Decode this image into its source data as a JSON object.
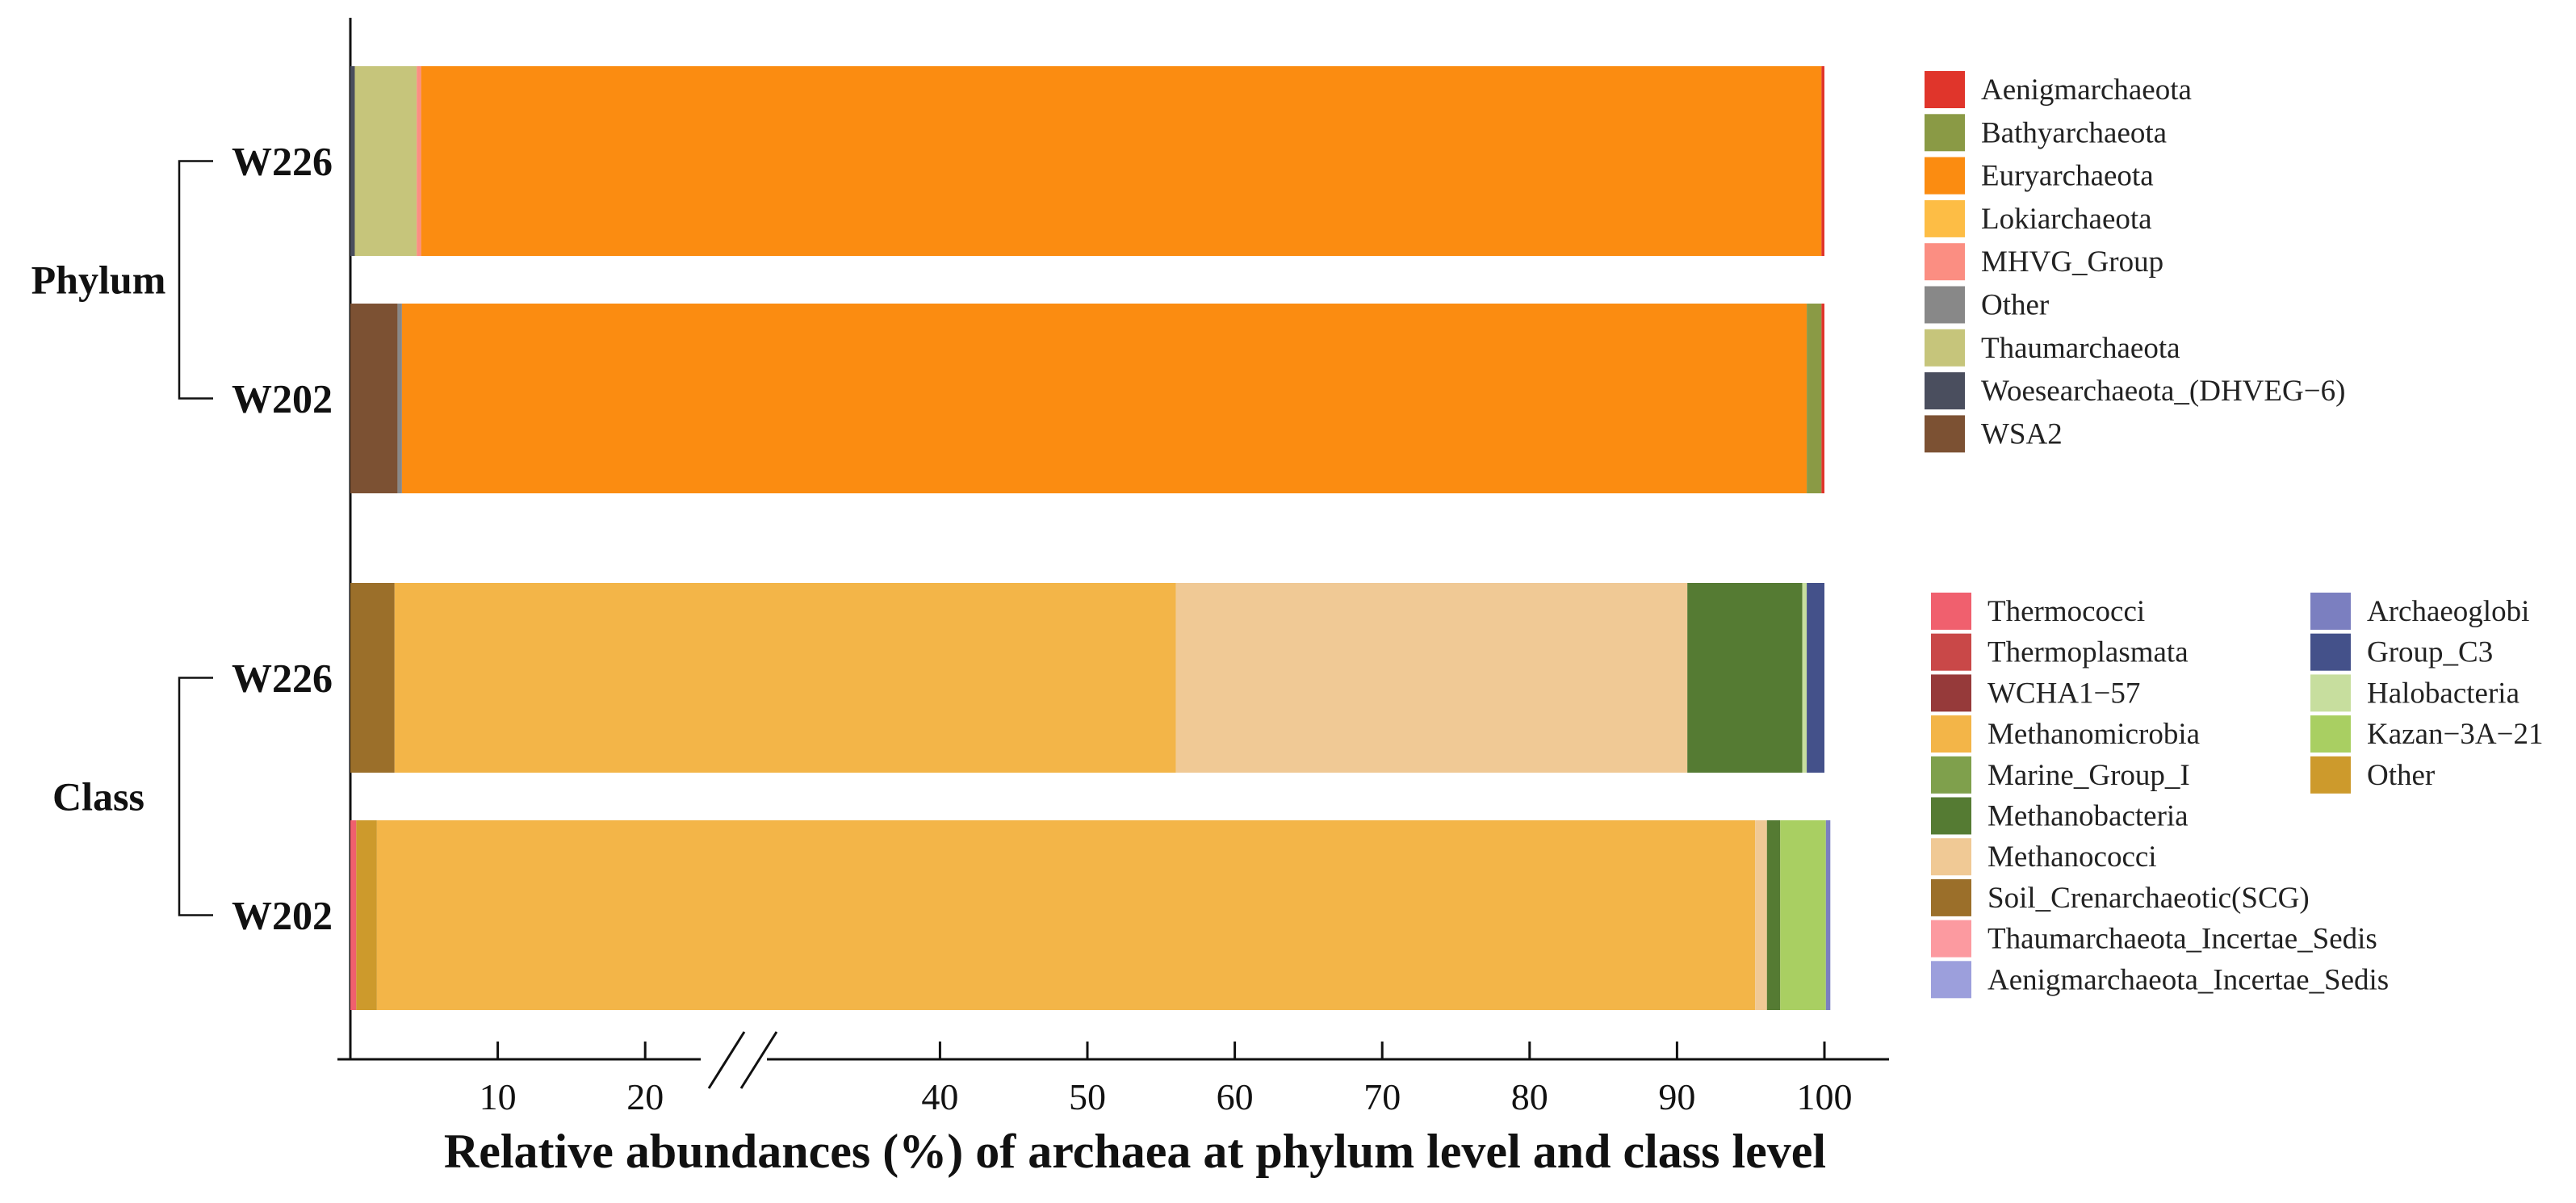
{
  "chart_data": {
    "type": "bar",
    "orientation": "horizontal",
    "stacked": true,
    "xlabel": "Relative abundances (%) of  archaea at phylum level and class level",
    "xlim": [
      0,
      100
    ],
    "axis_break": "between 20 and 30",
    "xticks": [
      10,
      20,
      40,
      50,
      60,
      70,
      80,
      90,
      100
    ],
    "grid": false,
    "groups": [
      {
        "name": "Phylum",
        "legend_position": "right-top",
        "legend": [
          "Aenigmarchaeota",
          "Bathyarchaeota",
          "Euryarchaeota",
          "Lokiarchaeota",
          "MHVG_Group",
          "Other",
          "Thaumarchaeota",
          "Woesearchaeota_(DHVEG−6)",
          "WSA2"
        ],
        "colors": {
          "Aenigmarchaeota": "#e0352b",
          "Bathyarchaeota": "#8a9a45",
          "Euryarchaeota": "#fb8c11",
          "Lokiarchaeota": "#fdbd45",
          "MHVG_Group": "#fb8e82",
          "Other": "#888888",
          "Thaumarchaeota": "#c6c57b",
          "Woesearchaeota_(DHVEG−6)": "#4a4e5e",
          "WSA2": "#7c5133"
        },
        "samples": [
          {
            "name": "W226",
            "segments": [
              {
                "taxon": "Woesearchaeota_(DHVEG−6)",
                "value": 0.3
              },
              {
                "taxon": "Thaumarchaeota",
                "value": 4.2
              },
              {
                "taxon": "MHVG_Group",
                "value": 0.3
              },
              {
                "taxon": "Euryarchaeota",
                "value": 95.0
              },
              {
                "taxon": "Aenigmarchaeota",
                "value": 0.2
              }
            ]
          },
          {
            "name": "W202",
            "segments": [
              {
                "taxon": "WSA2",
                "value": 3.2
              },
              {
                "taxon": "Other",
                "value": 0.3
              },
              {
                "taxon": "Euryarchaeota",
                "value": 95.3
              },
              {
                "taxon": "Bathyarchaeota",
                "value": 1.0
              },
              {
                "taxon": "Aenigmarchaeota",
                "value": 0.2
              }
            ]
          }
        ]
      },
      {
        "name": "Class",
        "legend_position": "right-bottom",
        "legend": [
          "Thermococci",
          "Thermoplasmata",
          "WCHA1−57",
          "Methanomicrobia",
          "Marine_Group_I",
          "Methanobacteria",
          "Methanococci",
          "Soil_Crenarchaeotic(SCG)",
          "Thaumarchaeota_Incertae_Sedis",
          "Aenigmarchaeota_Incertae_Sedis",
          "Archaeoglobi",
          "Group_C3",
          "Halobacteria",
          "Kazan−3A−21",
          "Other"
        ],
        "colors": {
          "Thermococci": "#f0606e",
          "Thermoplasmata": "#c94848",
          "WCHA1−57": "#963a3a",
          "Methanomicrobia": "#f3b548",
          "Marine_Group_I": "#7fa04c",
          "Methanobacteria": "#557b33",
          "Methanococci": "#f0c995",
          "Soil_Crenarchaeotic(SCG)": "#9b6f2a",
          "Thaumarchaeota_Incertae_Sedis": "#fc9aa0",
          "Aenigmarchaeota_Incertae_Sedis": "#9c9fdc",
          "Archaeoglobi": "#7b7fc0",
          "Group_C3": "#44518a",
          "Halobacteria": "#c7de9e",
          "Kazan−3A−21": "#a9cf62",
          "Other": "#cd9a2c"
        },
        "samples": [
          {
            "name": "W226",
            "segments": [
              {
                "taxon": "Soil_Crenarchaeotic(SCG)",
                "value": 3.0
              },
              {
                "taxon": "Methanomicrobia",
                "value": 53.0
              },
              {
                "taxon": "Methanococci",
                "value": 34.7
              },
              {
                "taxon": "Methanobacteria",
                "value": 7.8
              },
              {
                "taxon": "Halobacteria",
                "value": 0.3
              },
              {
                "taxon": "Group_C3",
                "value": 1.2
              }
            ]
          },
          {
            "name": "W202",
            "segments": [
              {
                "taxon": "Thermococci",
                "value": 0.4
              },
              {
                "taxon": "Other",
                "value": 1.4
              },
              {
                "taxon": "Methanomicrobia",
                "value": 93.5
              },
              {
                "taxon": "Methanococci",
                "value": 0.8
              },
              {
                "taxon": "Methanobacteria",
                "value": 0.9
              },
              {
                "taxon": "Kazan−3A−21",
                "value": 3.1
              },
              {
                "taxon": "Archaeoglobi",
                "value": 0.3
              }
            ]
          }
        ]
      }
    ]
  }
}
